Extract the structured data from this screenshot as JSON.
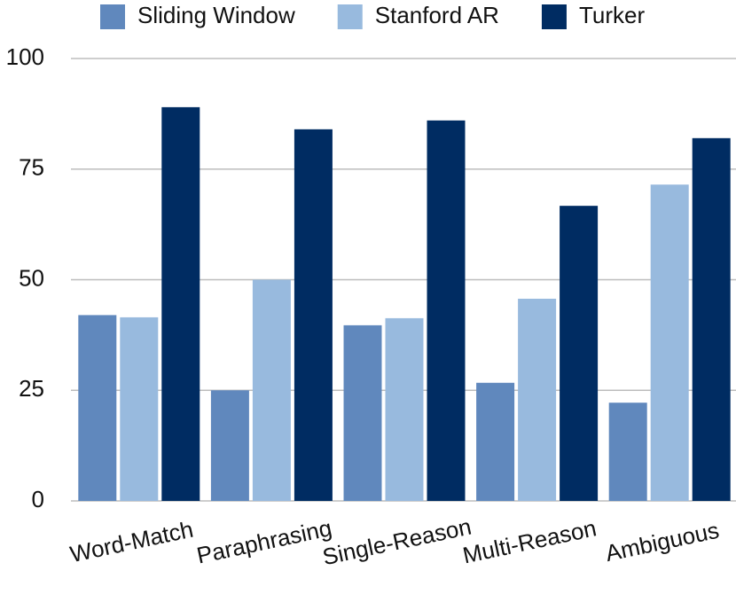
{
  "chart_data": {
    "type": "bar",
    "categories": [
      "Word-Match",
      "Paraphrasing",
      "Single-Reason",
      "Multi-Reason",
      "Ambiguous"
    ],
    "series": [
      {
        "name": "Sliding Window",
        "color": "#6088bd",
        "values": [
          42,
          25,
          39.7,
          26.7,
          22.2
        ]
      },
      {
        "name": "Stanford AR",
        "color": "#98bade",
        "values": [
          41.5,
          50,
          41.3,
          45.7,
          71.5
        ]
      },
      {
        "name": "Turker",
        "color": "#002c62",
        "values": [
          89,
          84,
          86,
          66.7,
          82
        ]
      }
    ],
    "ylim": [
      0,
      100
    ],
    "yticks": [
      0,
      25,
      50,
      75,
      100
    ],
    "grid": true,
    "legend": "top"
  }
}
